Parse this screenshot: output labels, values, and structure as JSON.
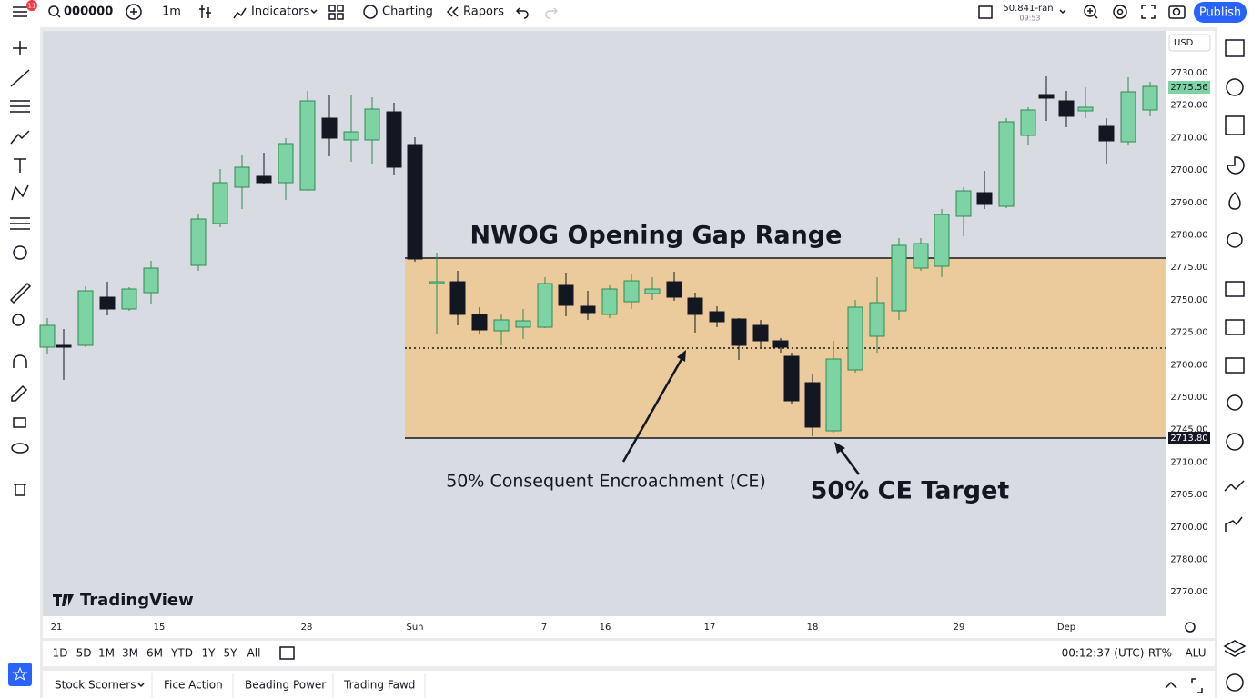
{
  "toolbar": {
    "notification_badge": "11",
    "symbol": "000000",
    "interval": "1m",
    "indicators": "Indicators",
    "charting": "Charting",
    "rapors": "Rapors",
    "price_info": "50.841-ran",
    "price_time": "09:53",
    "publish": "Publish"
  },
  "chart": {
    "currency": "USD",
    "price_labels": [
      "2730.00",
      "2720.00",
      "2710.00",
      "2700.00",
      "2790.00",
      "2780.00",
      "2775.00",
      "2750.00",
      "2725.00",
      "2700.00",
      "2750.00",
      "2745.00",
      "2710.00",
      "2705.00",
      "2700.00",
      "2780.00",
      "2770.00"
    ],
    "current_price": "2775.56",
    "ce_price": "2713.80",
    "time_labels": [
      "21",
      "15",
      "28",
      "Sun",
      "7",
      "16",
      "17",
      "18",
      "29",
      "Dep"
    ],
    "title": "NWOG Opening Gap Range",
    "ce_label": "50% Consequent Encroachment (CE)",
    "target_label": "50% CE Target",
    "watermark": "TradingView"
  },
  "range_bar": {
    "ranges": [
      "1D",
      "5D",
      "1M",
      "3M",
      "6M",
      "YTD",
      "1Y",
      "5Y",
      "All"
    ],
    "clock": "00:12:37 (UTC)",
    "rt": "RT%",
    "alu": "ALU"
  },
  "bottom_tabs": [
    "Stock Scorners",
    "Fice Action",
    "Beading Power",
    "Trading Fawd"
  ]
}
